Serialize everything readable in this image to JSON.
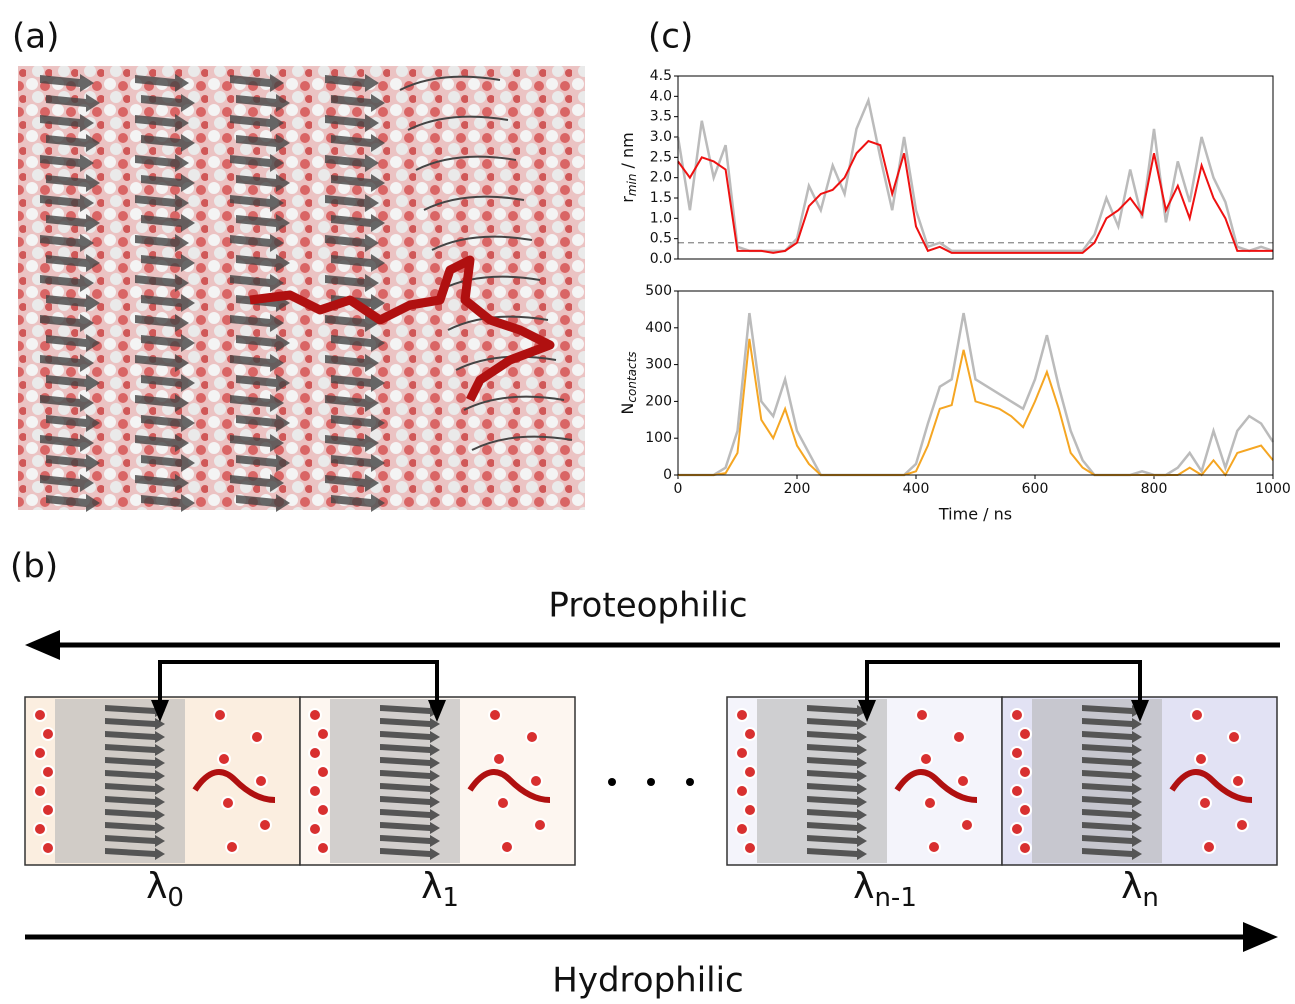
{
  "panels": [
    "(a)",
    "(b)",
    "(c)"
  ],
  "diagram": {
    "top_arrow_label": "Proteophilic",
    "bottom_arrow_label": "Hydrophilic",
    "states": [
      {
        "symbol": "λ",
        "sub": "0"
      },
      {
        "symbol": "λ",
        "sub": "1"
      },
      {
        "symbol": "λ",
        "sub": "n-1"
      },
      {
        "symbol": "λ",
        "sub": "n"
      }
    ]
  },
  "chart_data": [
    {
      "type": "line",
      "ylabel": [
        "r",
        "min",
        " / nm"
      ],
      "xlim": [
        0,
        1000
      ],
      "ylim": [
        0,
        4.5
      ],
      "yticks": [
        {
          "value": 0,
          "label": "0.0"
        },
        0.5,
        {
          "value": 1,
          "label": "1.0"
        },
        1.5,
        {
          "value": 2,
          "label": "2.0"
        },
        2.5,
        {
          "value": 3,
          "label": "3.0"
        },
        3.5,
        {
          "value": 4,
          "label": "4.0"
        },
        4.5
      ],
      "hline": 0.4,
      "x": [
        0,
        20,
        40,
        60,
        80,
        100,
        120,
        140,
        160,
        180,
        200,
        220,
        240,
        260,
        280,
        300,
        320,
        340,
        360,
        380,
        400,
        420,
        440,
        460,
        480,
        500,
        520,
        540,
        560,
        580,
        600,
        620,
        640,
        660,
        680,
        700,
        720,
        740,
        760,
        780,
        800,
        820,
        840,
        860,
        880,
        900,
        920,
        940,
        960,
        980,
        1000
      ],
      "series": [
        {
          "color": "#bbbbbb",
          "values": [
            3.0,
            1.2,
            3.4,
            2.0,
            2.8,
            0.3,
            0.2,
            0.2,
            0.2,
            0.2,
            0.5,
            1.8,
            1.2,
            2.3,
            1.6,
            3.2,
            3.9,
            2.5,
            1.2,
            3.0,
            1.2,
            0.3,
            0.4,
            0.2,
            0.2,
            0.2,
            0.2,
            0.2,
            0.2,
            0.2,
            0.2,
            0.2,
            0.2,
            0.2,
            0.2,
            0.6,
            1.5,
            0.8,
            2.2,
            1.0,
            3.2,
            0.9,
            2.4,
            1.4,
            3.0,
            2.0,
            1.4,
            0.3,
            0.2,
            0.3,
            0.2
          ]
        },
        {
          "color": "#ee1111",
          "values": [
            2.4,
            2.0,
            2.5,
            2.4,
            2.2,
            0.2,
            0.2,
            0.2,
            0.15,
            0.2,
            0.4,
            1.3,
            1.6,
            1.7,
            2.0,
            2.6,
            2.9,
            2.8,
            1.6,
            2.6,
            0.8,
            0.2,
            0.3,
            0.15,
            0.15,
            0.15,
            0.15,
            0.15,
            0.15,
            0.15,
            0.15,
            0.15,
            0.15,
            0.15,
            0.15,
            0.4,
            1.0,
            1.2,
            1.5,
            1.1,
            2.6,
            1.2,
            1.8,
            1.0,
            2.3,
            1.5,
            1.0,
            0.2,
            0.2,
            0.2,
            0.2
          ]
        }
      ]
    },
    {
      "type": "line",
      "ylabel": [
        "N",
        "contacts",
        ""
      ],
      "xlabel": "Time / ns",
      "xlim": [
        0,
        1000
      ],
      "ylim": [
        0,
        500
      ],
      "xticks": [
        0,
        200,
        400,
        600,
        800,
        1000
      ],
      "yticks": [
        0,
        100,
        200,
        300,
        400,
        500
      ],
      "x": [
        0,
        20,
        40,
        60,
        80,
        100,
        120,
        140,
        160,
        180,
        200,
        220,
        240,
        260,
        280,
        300,
        320,
        340,
        360,
        380,
        400,
        420,
        440,
        460,
        480,
        500,
        520,
        540,
        560,
        580,
        600,
        620,
        640,
        660,
        680,
        700,
        720,
        740,
        760,
        780,
        800,
        820,
        840,
        860,
        880,
        900,
        920,
        940,
        960,
        980,
        1000
      ],
      "series": [
        {
          "color": "#bbbbbb",
          "values": [
            0,
            0,
            0,
            0,
            20,
            120,
            440,
            200,
            160,
            260,
            120,
            60,
            0,
            0,
            0,
            0,
            0,
            0,
            0,
            0,
            30,
            140,
            240,
            260,
            440,
            260,
            240,
            220,
            200,
            180,
            260,
            380,
            240,
            120,
            40,
            0,
            0,
            0,
            0,
            10,
            0,
            0,
            20,
            60,
            10,
            120,
            20,
            120,
            160,
            140,
            90
          ]
        },
        {
          "color": "#f5a623",
          "values": [
            0,
            0,
            0,
            0,
            5,
            60,
            370,
            150,
            100,
            180,
            80,
            30,
            0,
            0,
            0,
            0,
            0,
            0,
            0,
            0,
            10,
            80,
            180,
            190,
            340,
            200,
            190,
            180,
            160,
            130,
            200,
            280,
            180,
            60,
            20,
            0,
            0,
            0,
            0,
            0,
            0,
            0,
            0,
            20,
            0,
            40,
            0,
            60,
            70,
            80,
            40
          ]
        }
      ]
    }
  ]
}
